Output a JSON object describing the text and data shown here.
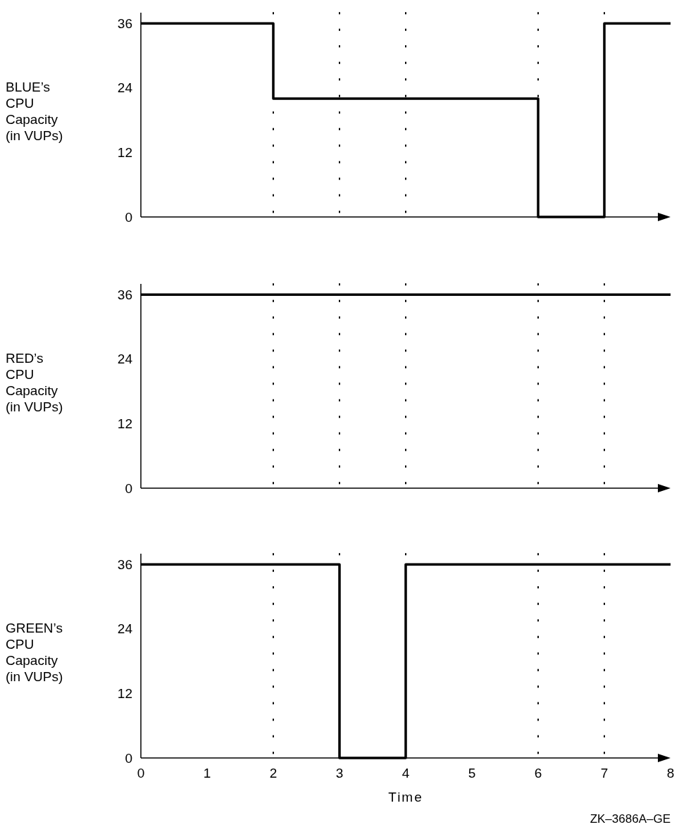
{
  "chart_data": [
    {
      "type": "step",
      "ylabel": "BLUE’s CPU Capacity (in VUPs)",
      "x": [
        0,
        2,
        6,
        7,
        8
      ],
      "series": [
        {
          "color": "#000000",
          "values": [
            36,
            22,
            0,
            36,
            36
          ]
        }
      ],
      "xlim": [
        0,
        8
      ],
      "ylim": [
        0,
        38
      ],
      "yticks": [
        0,
        12,
        24,
        36
      ],
      "tick_labels": "y",
      "grid": false,
      "line_style": "solid",
      "ref_lines": [
        {
          "axis": "x",
          "value": 2,
          "line_style": "dotted",
          "color": "#000000"
        },
        {
          "axis": "x",
          "value": 3,
          "line_style": "dotted",
          "color": "#000000"
        },
        {
          "axis": "x",
          "value": 4,
          "line_style": "dotted",
          "color": "#000000"
        },
        {
          "axis": "x",
          "value": 6,
          "line_style": "dotted",
          "color": "#000000"
        },
        {
          "axis": "x",
          "value": 7,
          "line_style": "dotted",
          "color": "#000000"
        }
      ]
    },
    {
      "type": "step",
      "ylabel": "RED’s CPU Capacity (in VUPs)",
      "x": [
        0,
        8
      ],
      "series": [
        {
          "color": "#000000",
          "values": [
            36,
            36
          ]
        }
      ],
      "xlim": [
        0,
        8
      ],
      "ylim": [
        0,
        38
      ],
      "yticks": [
        0,
        12,
        24,
        36
      ],
      "tick_labels": "y",
      "grid": false,
      "line_style": "solid",
      "ref_lines": [
        {
          "axis": "x",
          "value": 2,
          "line_style": "dotted",
          "color": "#000000"
        },
        {
          "axis": "x",
          "value": 3,
          "line_style": "dotted",
          "color": "#000000"
        },
        {
          "axis": "x",
          "value": 4,
          "line_style": "dotted",
          "color": "#000000"
        },
        {
          "axis": "x",
          "value": 6,
          "line_style": "dotted",
          "color": "#000000"
        },
        {
          "axis": "x",
          "value": 7,
          "line_style": "dotted",
          "color": "#000000"
        }
      ]
    },
    {
      "type": "step",
      "ylabel": "GREEN’s CPU Capacity (in VUPs)",
      "xlabel": "Time",
      "x": [
        0,
        3,
        4,
        8
      ],
      "series": [
        {
          "color": "#000000",
          "values": [
            36,
            0,
            36,
            36
          ]
        }
      ],
      "xlim": [
        0,
        8
      ],
      "ylim": [
        0,
        38
      ],
      "xticks": [
        0,
        1,
        2,
        3,
        4,
        5,
        6,
        7,
        8
      ],
      "yticks": [
        0,
        12,
        24,
        36
      ],
      "grid": false,
      "line_style": "solid",
      "ref_lines": [
        {
          "axis": "x",
          "value": 2,
          "line_style": "dotted",
          "color": "#000000"
        },
        {
          "axis": "x",
          "value": 3,
          "line_style": "dotted",
          "color": "#000000"
        },
        {
          "axis": "x",
          "value": 4,
          "line_style": "dotted",
          "color": "#000000"
        },
        {
          "axis": "x",
          "value": 6,
          "line_style": "dotted",
          "color": "#000000"
        },
        {
          "axis": "x",
          "value": 7,
          "line_style": "dotted",
          "color": "#000000"
        }
      ],
      "annotations": [
        "ZK–3686A–GE"
      ]
    }
  ]
}
